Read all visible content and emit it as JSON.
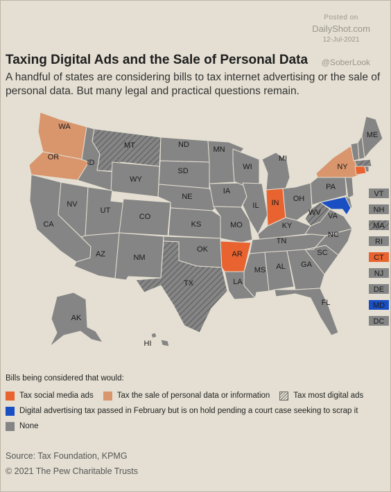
{
  "watermark": {
    "posted": "Posted on",
    "site": "DailyShot.com",
    "date": "12-Jul-2021"
  },
  "handle": "@SoberLook",
  "title": "Taxing Digital Ads and the Sale of Personal Data",
  "subtitle": "A handful of states are considering bills to tax internet advertising or the sale of personal data. But many legal and practical questions remain.",
  "colors": {
    "social": "#e8632f",
    "personal": "#d9956c",
    "digital": "#6a6a6a",
    "passed": "#1a4fc4",
    "none": "#858585",
    "background": "#e4dfd2"
  },
  "states": {
    "social_media_ads": [
      "IN",
      "AR",
      "CT"
    ],
    "sale_of_personal_data": [
      "WA",
      "OR",
      "NY"
    ],
    "most_digital_ads": [
      "MT",
      "TX",
      "WV",
      "MA"
    ],
    "passed_on_hold": [
      "MD"
    ]
  },
  "labels": {
    "WA": "WA",
    "OR": "OR",
    "CA": "CA",
    "ID": "ID",
    "NV": "NV",
    "MT": "MT",
    "WY": "WY",
    "UT": "UT",
    "AZ": "AZ",
    "CO": "CO",
    "NM": "NM",
    "ND": "ND",
    "SD": "SD",
    "NE": "NE",
    "KS": "KS",
    "OK": "OK",
    "TX": "TX",
    "MN": "MN",
    "IA": "IA",
    "MO": "MO",
    "AR": "AR",
    "LA": "LA",
    "WI": "WI",
    "IL": "IL",
    "MI": "MI",
    "IN": "IN",
    "OH": "OH",
    "KY": "KY",
    "TN": "TN",
    "MS": "MS",
    "AL": "AL",
    "GA": "GA",
    "FL": "FL",
    "SC": "SC",
    "NC": "NC",
    "VA": "VA",
    "WV": "WV",
    "PA": "PA",
    "NY": "NY",
    "ME": "ME",
    "AK": "AK",
    "HI": "HI"
  },
  "small_states": [
    {
      "code": "VT",
      "category": "none"
    },
    {
      "code": "NH",
      "category": "none"
    },
    {
      "code": "MA",
      "category": "most_digital_ads"
    },
    {
      "code": "RI",
      "category": "none"
    },
    {
      "code": "CT",
      "category": "social_media_ads"
    },
    {
      "code": "NJ",
      "category": "none"
    },
    {
      "code": "DE",
      "category": "none"
    },
    {
      "code": "MD",
      "category": "passed_on_hold"
    },
    {
      "code": "DC",
      "category": "none"
    }
  ],
  "legend": {
    "title": "Bills being considered that would:",
    "social": "Tax social media ads",
    "personal": "Tax the sale of personal data or information",
    "digital": "Tax most digital ads",
    "passed": "Digital advertising tax passed in February but is on hold pending a court case seeking to scrap it",
    "none": "None"
  },
  "source": "Source: Tax Foundation, KPMG",
  "credit": "© 2021 The Pew Charitable Trusts"
}
